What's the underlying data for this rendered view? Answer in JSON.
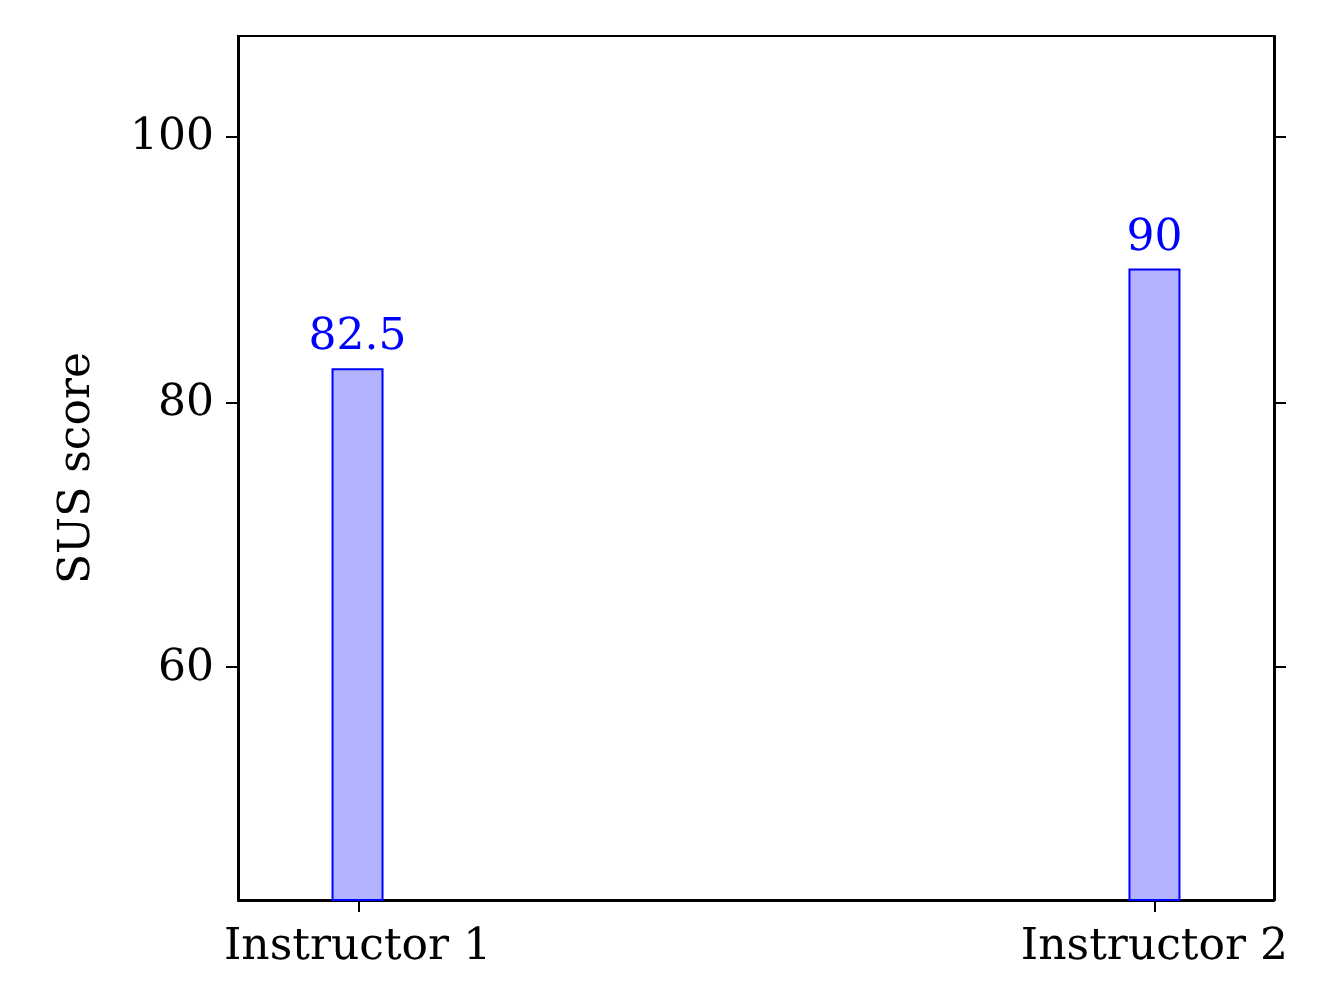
{
  "chart_data": {
    "type": "bar",
    "ylabel": "SUS score",
    "categories": [
      "Instructor 1",
      "Instructor 2"
    ],
    "values": [
      82.5,
      90
    ],
    "color": "#b3b3ff",
    "ylim": [
      42.5,
      107.5
    ],
    "yticks": [
      60,
      80,
      100
    ],
    "data_labels": true
  }
}
